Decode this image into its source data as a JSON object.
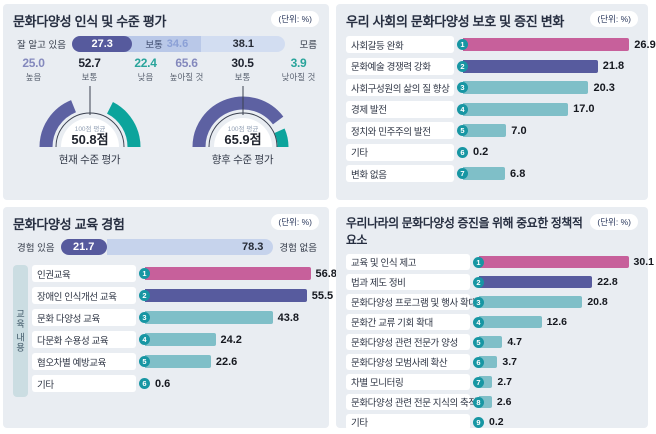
{
  "unit_label": "(단위: %)",
  "colors": {
    "pink": "#c7609b",
    "purple": "#575b9e",
    "purple-dk": "#565a9d",
    "teal": "#7fbfc8",
    "badge": "#1796a3",
    "gauge-purple": "#5d61a2",
    "gauge-teal": "#0ca49c"
  },
  "chart_data": [
    {
      "type": "bar",
      "title": "문화다양성 인식 및 수준 평가",
      "awareness_bar": {
        "left_label": "잘 알고 있음",
        "right_label": "모름",
        "categories": [
          "잘 알고 있음",
          "보통",
          "모름"
        ],
        "segments": [
          {
            "value": 27.3
          },
          {
            "label": "보통",
            "value": 34.6
          },
          {
            "value": 38.1
          }
        ]
      },
      "current_level": {
        "stats": [
          {
            "value": "25.0",
            "label": "높음",
            "cls": "purple"
          },
          {
            "value": "52.7",
            "label": "보통",
            "cls": "dark"
          },
          {
            "value": "22.4",
            "label": "낮음",
            "cls": "teal"
          }
        ],
        "avg_label": "100점 평균",
        "avg": "50.8점",
        "caption": "현재 수준 평가",
        "arcs": [
          {
            "color": "gauge-purple",
            "from": 180,
            "to": 112,
            "r": 44,
            "w": 13
          },
          {
            "color": "gauge-teal",
            "from": 63,
            "to": 0,
            "r": 44,
            "w": 13
          }
        ]
      },
      "future_level": {
        "stats": [
          {
            "value": "65.6",
            "label": "높아질 것",
            "cls": "purple"
          },
          {
            "value": "30.5",
            "label": "보통",
            "cls": "dark"
          },
          {
            "value": "3.9",
            "label": "낮아질 것",
            "cls": "teal"
          }
        ],
        "avg_label": "100점 평균",
        "avg": "65.9점",
        "caption": "향후 수준 평가",
        "arcs": [
          {
            "color": "gauge-purple",
            "from": 180,
            "to": 37,
            "r": 44,
            "w": 13
          },
          {
            "color": "gauge-teal",
            "from": 24,
            "to": 0,
            "r": 40,
            "w": 11
          }
        ]
      }
    },
    {
      "type": "bar",
      "title": "우리 사회의 문화다양성 보호 및 증진 변화",
      "categories": [
        "사회갈등 완화",
        "문화예술 경쟁력 강화",
        "사회구성원의 삶의 질 향상",
        "경제 발전",
        "정치와 민주주의 발전",
        "기타",
        "변화 없음"
      ],
      "values": [
        26.9,
        21.8,
        20.3,
        17.0,
        7.0,
        0.2,
        6.8
      ],
      "xlim": [
        0,
        27.5
      ]
    },
    {
      "type": "bar",
      "title": "문화다양성 교육 경험",
      "experience_bar": {
        "left_label": "경험 있음",
        "right_label": "경험 없음",
        "categories": [
          "경험 있음",
          "경험 없음"
        ],
        "segments": [
          {
            "value": 21.7
          },
          {
            "value": 78.3
          }
        ]
      },
      "group_label": "교육 내용",
      "categories": [
        "인권교육",
        "장애인 인식개선 교육",
        "문화 다양성 교육",
        "다문화 수용성 교육",
        "혐오차별 예방교육",
        "기타"
      ],
      "values": [
        56.8,
        55.5,
        43.8,
        24.2,
        22.6,
        0.6
      ],
      "xlim": [
        0,
        58
      ]
    },
    {
      "type": "bar",
      "title": "우리나라의 문화다양성 증진을 위해 중요한 정책적 요소",
      "categories": [
        "교육 및 인식 제고",
        "법과 제도 정비",
        "문화다양성 프로그램 및 행사 확대",
        "문화간 교류 기회 확대",
        "문화다양성 관련 전문가 양성",
        "문화다양성 모범사례 확산",
        "차별 모니터링",
        "문화다양성 관련 전문 지식의 축적",
        "기타"
      ],
      "values": [
        30.1,
        22.8,
        20.8,
        12.6,
        4.7,
        3.7,
        2.7,
        2.6,
        0.2
      ],
      "xlim": [
        0,
        31
      ]
    }
  ]
}
